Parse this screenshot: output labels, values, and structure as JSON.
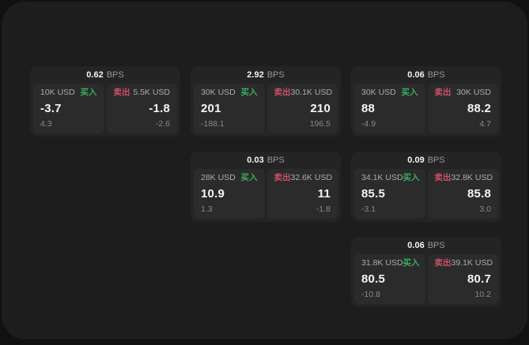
{
  "labels": {
    "bps_unit": "BPS",
    "buy": "买入",
    "sell": "卖出"
  },
  "colors": {
    "buy_green": "#3BAE5C",
    "sell_red": "#CD5066",
    "window_bg": "#1D1D1E",
    "card_bg": "#242425",
    "tile_bg": "#2B2B2C"
  },
  "cards": [
    {
      "bps": "0.62",
      "buy": {
        "amount": "10K USD",
        "price": "-3.7",
        "delta": "4.3"
      },
      "sell": {
        "amount": "5.5K USD",
        "price": "-1.8",
        "delta": "-2.6"
      }
    },
    {
      "bps": "2.92",
      "buy": {
        "amount": "30K USD",
        "price": "201",
        "delta": "-188.1"
      },
      "sell": {
        "amount": "30.1K USD",
        "price": "210",
        "delta": "196.5"
      }
    },
    {
      "bps": "0.06",
      "buy": {
        "amount": "30K USD",
        "price": "88",
        "delta": "-4.9"
      },
      "sell": {
        "amount": "30K USD",
        "price": "88.2",
        "delta": "4.7"
      }
    },
    {
      "bps": "0.03",
      "buy": {
        "amount": "28K USD",
        "price": "10.9",
        "delta": "1.3"
      },
      "sell": {
        "amount": "32.6K USD",
        "price": "11",
        "delta": "-1.8"
      }
    },
    {
      "bps": "0.09",
      "buy": {
        "amount": "34.1K USD",
        "price": "85.5",
        "delta": "-3.1"
      },
      "sell": {
        "amount": "32.8K USD",
        "price": "85.8",
        "delta": "3.0"
      }
    },
    {
      "bps": "0.06",
      "buy": {
        "amount": "31.8K USD",
        "price": "80.5",
        "delta": "-10.8"
      },
      "sell": {
        "amount": "39.1K USD",
        "price": "80.7",
        "delta": "10.2"
      }
    }
  ]
}
